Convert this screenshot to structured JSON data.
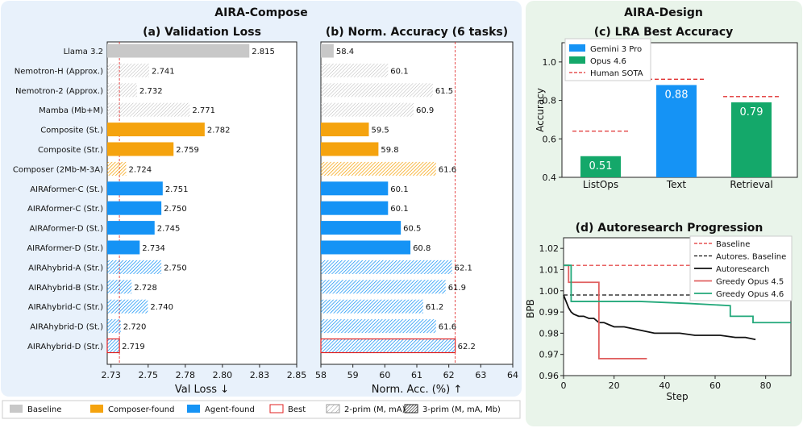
{
  "left_panel": {
    "title": "AIRA-Compose",
    "bg": "#e8f1fb"
  },
  "right_panel": {
    "title": "AIRA-Design",
    "bg": "#e9f4ea"
  },
  "colors": {
    "baseline": "#c8c8c8",
    "composer": "#f5a30e",
    "agent": "#1593f5",
    "best": "#e02020",
    "gemini": "#1593f5",
    "opus": "#14a86a",
    "human_sota": "#e03030"
  },
  "chart_data": [
    {
      "type": "bar",
      "orientation": "horizontal",
      "title": "(a) Validation Loss",
      "xlabel": "Val Loss ↓",
      "xlim": [
        2.71,
        2.85
      ],
      "xticks": [
        "2.73",
        "2.75",
        "2.78",
        "2.80",
        "2.83",
        "2.85"
      ],
      "best_line": 2.719,
      "categories": [
        "Llama 3.2",
        "Nemotron-H (Approx.)",
        "Nemotron-2 (Approx.)",
        "Mamba (Mb+M)",
        "Composite (St.)",
        "Composite (Str.)",
        "Composer (2Mb-M-3A)",
        "AIRAformer-C (St.)",
        "AIRAformer-C (Str.)",
        "AIRAformer-D (St.)",
        "AIRAformer-D (Str.)",
        "AIRAhybrid-A (Str.)",
        "AIRAhybrid-B (Str.)",
        "AIRAhybrid-C (Str.)",
        "AIRAhybrid-D (St.)",
        "AIRAhybrid-D (Str.)"
      ],
      "values": [
        2.815,
        2.741,
        2.732,
        2.771,
        2.782,
        2.759,
        2.724,
        2.751,
        2.75,
        2.745,
        2.734,
        2.75,
        2.728,
        2.74,
        2.72,
        2.719
      ],
      "value_labels": [
        "2.815",
        "2.741",
        "2.732",
        "2.771",
        "2.782",
        "2.759",
        "2.724",
        "2.751",
        "2.750",
        "2.745",
        "2.734",
        "2.750",
        "2.728",
        "2.740",
        "2.720",
        "2.719"
      ],
      "groups": [
        "baseline",
        "baseline",
        "baseline",
        "baseline",
        "composer",
        "composer",
        "composer",
        "agent",
        "agent",
        "agent",
        "agent",
        "agent",
        "agent",
        "agent",
        "agent",
        "agent"
      ],
      "hatch": [
        "none",
        "2prim",
        "2prim",
        "2prim",
        "none",
        "none",
        "3prim",
        "none",
        "none",
        "none",
        "none",
        "3prim",
        "3prim",
        "3prim",
        "3prim",
        "3prim"
      ],
      "best_index": 15
    },
    {
      "type": "bar",
      "orientation": "horizontal",
      "title": "(b) Norm. Accuracy (6 tasks)",
      "xlabel": "Norm. Acc. (%) ↑",
      "xlim": [
        58,
        64
      ],
      "xticks": [
        "58",
        "59",
        "60",
        "61",
        "62",
        "63",
        "64"
      ],
      "best_line": 62.2,
      "values": [
        58.4,
        60.1,
        61.5,
        60.9,
        59.5,
        59.8,
        61.6,
        60.1,
        60.1,
        60.5,
        60.8,
        62.1,
        61.9,
        61.2,
        61.6,
        62.2
      ],
      "value_labels": [
        "58.4",
        "60.1",
        "61.5",
        "60.9",
        "59.5",
        "59.8",
        "61.6",
        "60.1",
        "60.1",
        "60.5",
        "60.8",
        "62.1",
        "61.9",
        "61.2",
        "61.6",
        "62.2"
      ],
      "best_index": 15
    },
    {
      "type": "bar",
      "title": "(c) LRA Best Accuracy",
      "ylabel": "Accuracy",
      "ylim": [
        0.4,
        1.1
      ],
      "yticks": [
        "0.4",
        "0.6",
        "0.8",
        "1.0"
      ],
      "categories": [
        "ListOps",
        "Text",
        "Retrieval"
      ],
      "values": [
        0.51,
        0.88,
        0.79
      ],
      "value_labels": [
        "0.51",
        "0.88",
        "0.79"
      ],
      "bar_series": [
        "Opus 4.6",
        "Gemini 3 Pro",
        "Opus 4.6"
      ],
      "human_sota": [
        0.64,
        0.91,
        0.82
      ],
      "legend": [
        "Gemini 3 Pro",
        "Opus 4.6",
        "Human SOTA"
      ],
      "legend_position": "top-left"
    },
    {
      "type": "line",
      "title": "(d) Autoresearch Progression",
      "xlabel": "Step",
      "ylabel": "BPB",
      "xlim": [
        0,
        90
      ],
      "ylim": [
        0.96,
        1.025
      ],
      "xticks": [
        "0",
        "20",
        "40",
        "60",
        "80"
      ],
      "yticks": [
        "0.96",
        "0.97",
        "0.98",
        "0.99",
        "1.00",
        "1.01",
        "1.02"
      ],
      "legend_position": "top-right",
      "series": [
        {
          "name": "Baseline",
          "style": "dashed",
          "color": "#e03030",
          "x": [
            0,
            90
          ],
          "y": [
            1.012,
            1.012
          ]
        },
        {
          "name": "Autores. Baseline",
          "style": "dashed",
          "color": "#111111",
          "x": [
            0,
            90
          ],
          "y": [
            0.998,
            0.998
          ]
        },
        {
          "name": "Autoresearch",
          "style": "solid",
          "color": "#111111",
          "x": [
            0,
            1,
            2,
            3,
            4,
            6,
            8,
            10,
            12,
            14,
            16,
            18,
            20,
            24,
            28,
            32,
            36,
            40,
            46,
            52,
            56,
            62,
            68,
            72,
            76
          ],
          "y": [
            0.998,
            0.995,
            0.992,
            0.99,
            0.989,
            0.988,
            0.988,
            0.987,
            0.987,
            0.985,
            0.985,
            0.984,
            0.983,
            0.983,
            0.982,
            0.981,
            0.98,
            0.98,
            0.98,
            0.979,
            0.979,
            0.979,
            0.978,
            0.978,
            0.977
          ]
        },
        {
          "name": "Greedy Opus 4.5",
          "style": "solid",
          "color": "#e06060",
          "x": [
            0,
            1,
            2,
            2,
            12,
            14,
            14,
            33
          ],
          "y": [
            1.012,
            1.012,
            1.012,
            1.004,
            1.004,
            1.004,
            0.968,
            0.968
          ]
        },
        {
          "name": "Greedy Opus 4.6",
          "style": "solid",
          "color": "#22a87a",
          "x": [
            0,
            3,
            3,
            10,
            30,
            50,
            66,
            66,
            75,
            75,
            90
          ],
          "y": [
            1.012,
            1.012,
            0.995,
            0.995,
            0.995,
            0.994,
            0.993,
            0.988,
            0.988,
            0.985,
            0.985
          ]
        }
      ]
    }
  ],
  "legend": {
    "items": [
      {
        "label": "Baseline",
        "style": "fill",
        "color": "#c8c8c8"
      },
      {
        "label": "Composer-found",
        "style": "fill",
        "color": "#f5a30e"
      },
      {
        "label": "Agent-found",
        "style": "fill",
        "color": "#1593f5"
      },
      {
        "label": "Best",
        "style": "outline",
        "color": "#e02020"
      },
      {
        "label": "2-prim (M, mA)",
        "style": "hatch-light",
        "color": "#888888"
      },
      {
        "label": "3-prim (M, mA, Mb)",
        "style": "hatch-dense",
        "color": "#444444"
      }
    ]
  }
}
